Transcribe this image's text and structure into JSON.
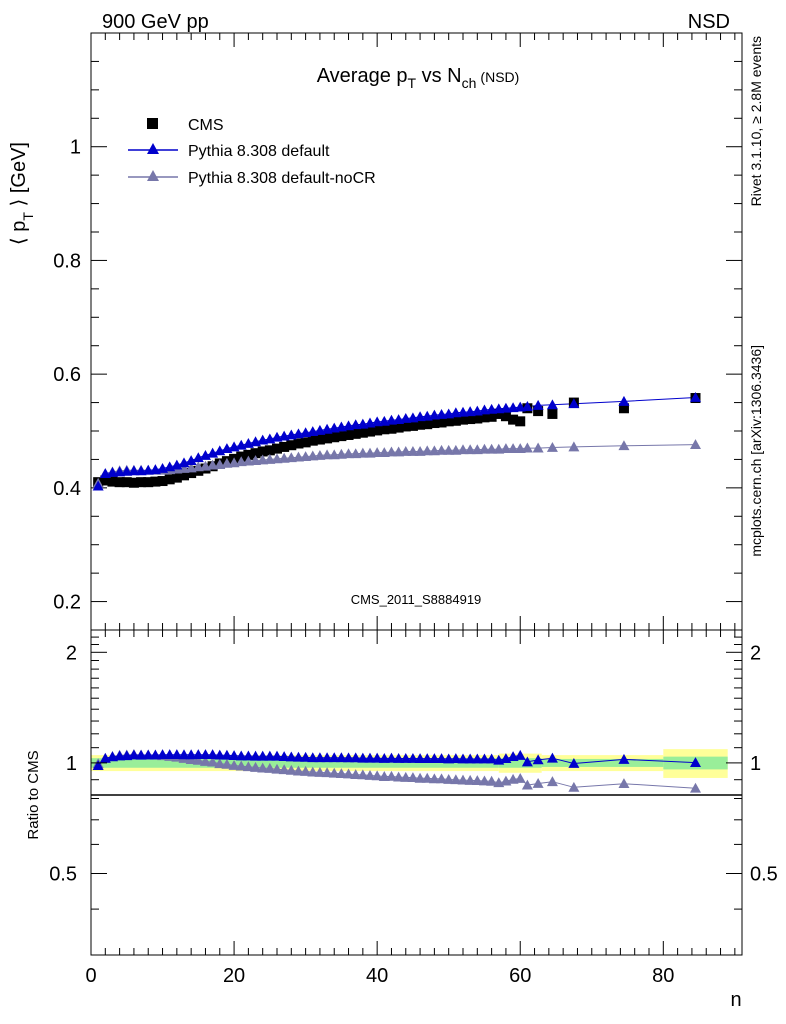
{
  "header": {
    "left": "900 GeV pp",
    "right": "NSD"
  },
  "side": {
    "top": "Rivet 3.1.10, ≥ 2.8M events",
    "bottom": "mcplots.cern.ch [arXiv:1306.3436]"
  },
  "chart_data": [
    {
      "panel": "main",
      "type": "scatter",
      "title": "Average p",
      "title_sub": "T",
      "title_mid": " vs N",
      "title_sub2": "ch",
      "title_tag": "(NSD)",
      "ylabel": "⟨ p",
      "ylabel_sub": "T",
      "ylabel_tail": " ⟩ [GeV]",
      "watermark": "CMS_2011_S8884919",
      "xlim": [
        0,
        91
      ],
      "ylim": [
        0.15,
        1.2
      ],
      "yticks": [
        0.2,
        0.4,
        0.6,
        0.8,
        1.0
      ],
      "ytick_labels": [
        "0.2",
        "0.4",
        "0.6",
        "0.8",
        "1"
      ],
      "legend_position": "top-left",
      "x": [
        1,
        2,
        3,
        4,
        5,
        6,
        7,
        8,
        9,
        10,
        11,
        12,
        13,
        14,
        15,
        16,
        17,
        18,
        19,
        20,
        21,
        22,
        23,
        24,
        25,
        26,
        27,
        28,
        29,
        30,
        31,
        32,
        33,
        34,
        35,
        36,
        37,
        38,
        39,
        40,
        41,
        42,
        43,
        44,
        45,
        46,
        47,
        48,
        49,
        50,
        51,
        52,
        53,
        54,
        55,
        56,
        57,
        58,
        59,
        60,
        61,
        62.5,
        64.5,
        67.5,
        74.5,
        84.5
      ],
      "series": [
        {
          "name": "CMS",
          "color": "#000000",
          "marker": "square",
          "values": [
            0.41,
            0.413,
            0.411,
            0.41,
            0.41,
            0.409,
            0.41,
            0.41,
            0.411,
            0.412,
            0.415,
            0.418,
            0.422,
            0.426,
            0.43,
            0.434,
            0.438,
            0.443,
            0.447,
            0.451,
            0.455,
            0.458,
            0.461,
            0.464,
            0.466,
            0.469,
            0.472,
            0.475,
            0.478,
            0.48,
            0.483,
            0.485,
            0.487,
            0.489,
            0.491,
            0.493,
            0.495,
            0.497,
            0.499,
            0.501,
            0.503,
            0.504,
            0.506,
            0.508,
            0.509,
            0.511,
            0.512,
            0.514,
            0.515,
            0.517,
            0.518,
            0.52,
            0.521,
            0.522,
            0.524,
            0.525,
            0.53,
            0.526,
            0.52,
            0.517,
            0.54,
            0.535,
            0.53,
            0.55,
            0.54,
            0.558
          ]
        },
        {
          "name": "Pythia 8.308 default",
          "color": "#0000cc",
          "marker": "triangle",
          "values": [
            0.403,
            0.425,
            0.427,
            0.428,
            0.429,
            0.43,
            0.43,
            0.431,
            0.432,
            0.434,
            0.437,
            0.44,
            0.444,
            0.448,
            0.453,
            0.457,
            0.461,
            0.465,
            0.469,
            0.472,
            0.475,
            0.478,
            0.481,
            0.484,
            0.486,
            0.489,
            0.491,
            0.493,
            0.495,
            0.497,
            0.499,
            0.501,
            0.503,
            0.505,
            0.507,
            0.509,
            0.511,
            0.512,
            0.514,
            0.516,
            0.517,
            0.519,
            0.52,
            0.522,
            0.523,
            0.525,
            0.526,
            0.528,
            0.529,
            0.53,
            0.532,
            0.533,
            0.534,
            0.535,
            0.537,
            0.538,
            0.539,
            0.54,
            0.541,
            0.542,
            0.543,
            0.545,
            0.546,
            0.548,
            0.552,
            0.559
          ]
        },
        {
          "name": "Pythia 8.308 default-noCR",
          "color": "#7777aa",
          "marker": "triangle",
          "values": [
            0.408,
            0.425,
            0.428,
            0.43,
            0.431,
            0.431,
            0.431,
            0.431,
            0.431,
            0.431,
            0.432,
            0.433,
            0.434,
            0.435,
            0.437,
            0.438,
            0.44,
            0.441,
            0.443,
            0.444,
            0.446,
            0.447,
            0.448,
            0.449,
            0.45,
            0.451,
            0.452,
            0.453,
            0.454,
            0.455,
            0.456,
            0.457,
            0.458,
            0.458,
            0.459,
            0.46,
            0.46,
            0.461,
            0.461,
            0.462,
            0.462,
            0.463,
            0.463,
            0.464,
            0.464,
            0.464,
            0.465,
            0.465,
            0.466,
            0.466,
            0.466,
            0.467,
            0.467,
            0.467,
            0.468,
            0.468,
            0.468,
            0.469,
            0.469,
            0.469,
            0.47,
            0.47,
            0.471,
            0.472,
            0.474,
            0.476
          ]
        }
      ]
    },
    {
      "panel": "ratio",
      "type": "scatter",
      "ylabel": "Ratio to CMS",
      "xlabel": "n",
      "xlim": [
        0,
        91
      ],
      "ylim": [
        0.3,
        2.3
      ],
      "yticks": [
        0.5,
        1,
        2
      ],
      "ytick_labels": [
        "0.5",
        "1",
        "2"
      ],
      "xticks": [
        0,
        20,
        40,
        60,
        80
      ],
      "xtick_labels": [
        "0",
        "20",
        "40",
        "60",
        "80"
      ],
      "x": [
        1,
        2,
        3,
        4,
        5,
        6,
        7,
        8,
        9,
        10,
        11,
        12,
        13,
        14,
        15,
        16,
        17,
        18,
        19,
        20,
        21,
        22,
        23,
        24,
        25,
        26,
        27,
        28,
        29,
        30,
        31,
        32,
        33,
        34,
        35,
        36,
        37,
        38,
        39,
        40,
        41,
        42,
        43,
        44,
        45,
        46,
        47,
        48,
        49,
        50,
        51,
        52,
        53,
        54,
        55,
        56,
        57,
        58,
        59,
        60,
        61,
        62.5,
        64.5,
        67.5,
        74.5,
        84.5
      ],
      "band_green": [
        [
          0,
          57,
          0.03
        ],
        [
          57,
          63,
          0.03
        ],
        [
          63,
          80,
          0.025
        ],
        [
          80,
          89,
          0.04
        ]
      ],
      "band_yellow": [
        [
          0,
          57,
          0.05
        ],
        [
          57,
          63,
          0.06
        ],
        [
          63,
          80,
          0.05
        ],
        [
          80,
          89,
          0.09
        ]
      ],
      "series": [
        {
          "name": "Pythia 8.308 default",
          "color": "#0000cc",
          "values": [
            0.983,
            1.029,
            1.039,
            1.044,
            1.046,
            1.051,
            1.049,
            1.051,
            1.051,
            1.053,
            1.053,
            1.053,
            1.052,
            1.052,
            1.053,
            1.053,
            1.053,
            1.05,
            1.049,
            1.047,
            1.044,
            1.044,
            1.043,
            1.043,
            1.043,
            1.043,
            1.04,
            1.038,
            1.036,
            1.035,
            1.033,
            1.033,
            1.033,
            1.033,
            1.033,
            1.032,
            1.032,
            1.03,
            1.03,
            1.03,
            1.028,
            1.03,
            1.028,
            1.028,
            1.028,
            1.027,
            1.027,
            1.027,
            1.027,
            1.025,
            1.027,
            1.025,
            1.025,
            1.025,
            1.025,
            1.025,
            1.017,
            1.027,
            1.04,
            1.048,
            1.006,
            1.019,
            1.03,
            0.996,
            1.022,
            1.002
          ]
        },
        {
          "name": "Pythia 8.308 default-noCR",
          "color": "#7777aa",
          "values": [
            0.995,
            1.029,
            1.041,
            1.049,
            1.051,
            1.054,
            1.051,
            1.051,
            1.049,
            1.046,
            1.041,
            1.036,
            1.028,
            1.021,
            1.016,
            1.009,
            1.005,
            0.995,
            0.991,
            0.984,
            0.98,
            0.976,
            0.972,
            0.968,
            0.966,
            0.961,
            0.958,
            0.954,
            0.95,
            0.948,
            0.944,
            0.942,
            0.94,
            0.937,
            0.935,
            0.933,
            0.929,
            0.928,
            0.924,
            0.922,
            0.918,
            0.919,
            0.915,
            0.913,
            0.912,
            0.908,
            0.908,
            0.905,
            0.905,
            0.901,
            0.9,
            0.898,
            0.896,
            0.895,
            0.893,
            0.891,
            0.883,
            0.892,
            0.902,
            0.907,
            0.87,
            0.879,
            0.889,
            0.858,
            0.878,
            0.853
          ]
        }
      ]
    }
  ]
}
